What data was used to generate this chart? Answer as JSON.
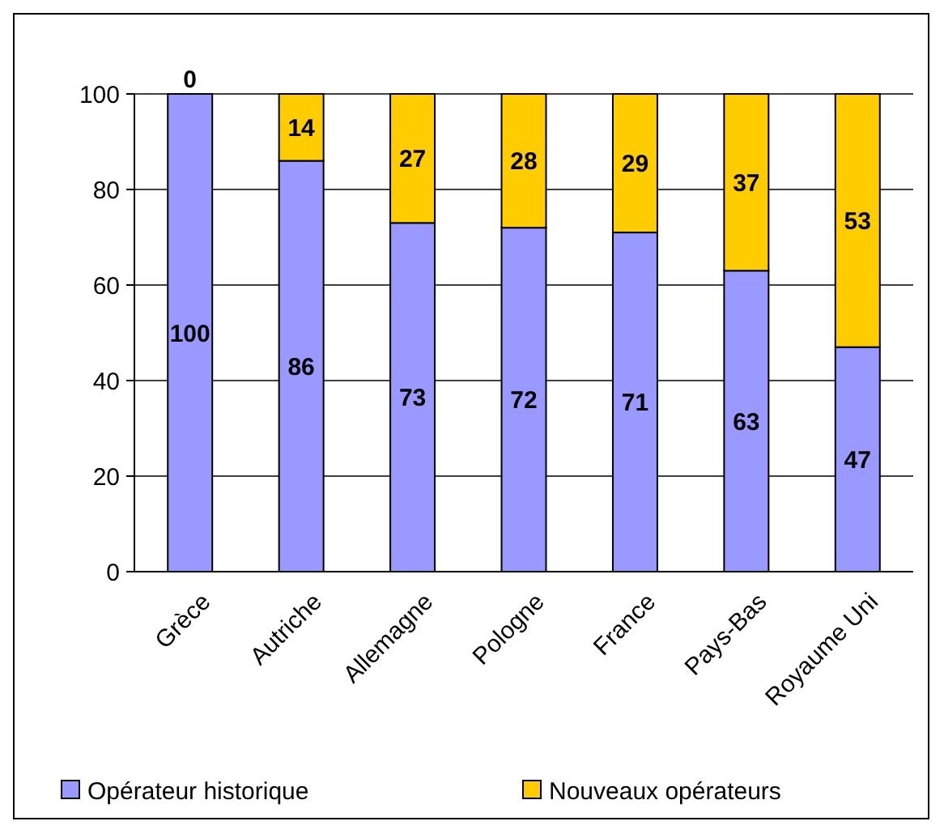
{
  "chart_data": {
    "type": "bar",
    "stacked": true,
    "categories": [
      "Grèce",
      "Autriche",
      "Allemagne",
      "Pologne",
      "France",
      "Pays-Bas",
      "Royaume Uni"
    ],
    "series": [
      {
        "name": "Opérateur historique",
        "color": "#9999ff",
        "values": [
          100,
          86,
          73,
          72,
          71,
          63,
          47
        ]
      },
      {
        "name": "Nouveaux opérateurs",
        "color": "#ffcc00",
        "values": [
          0,
          14,
          27,
          28,
          29,
          37,
          53
        ]
      }
    ],
    "ylim": [
      0,
      100
    ],
    "yticks": [
      0,
      20,
      40,
      60,
      80,
      100
    ],
    "grid": "y",
    "legend": "bottom",
    "data_labels": true
  }
}
